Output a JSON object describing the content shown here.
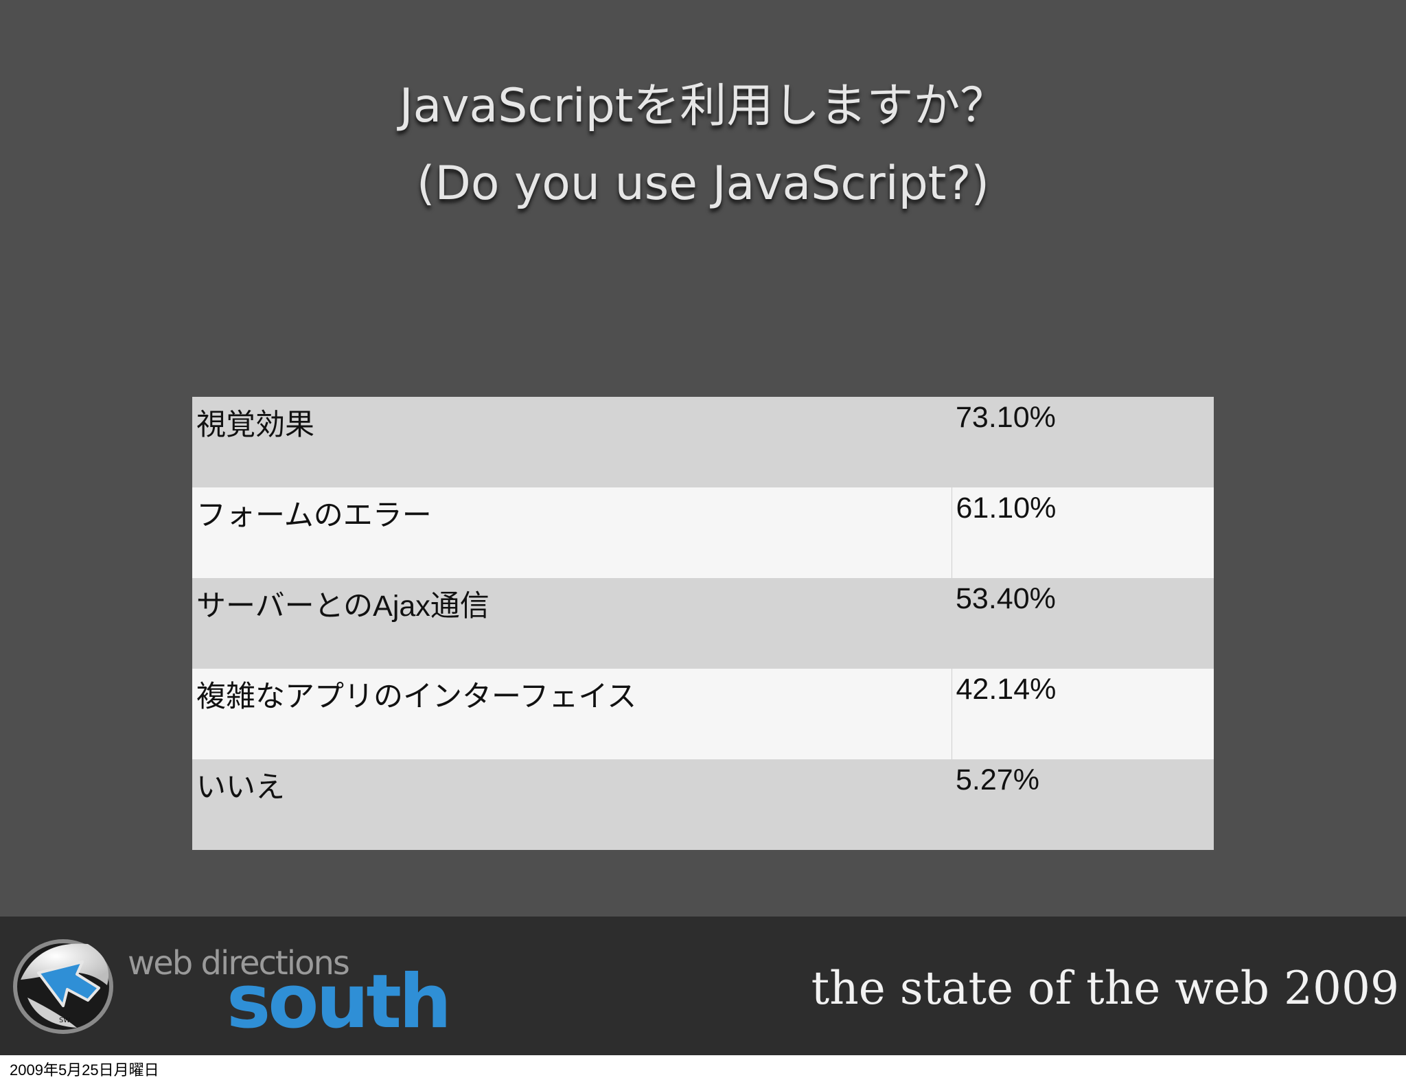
{
  "slide": {
    "title_line1": "JavaScriptを利用しますか？",
    "title_line2": "(Do you use JavaScript?)"
  },
  "table": {
    "rows": [
      {
        "label": "視覚効果",
        "value": "73.10%"
      },
      {
        "label": "フォームのエラー",
        "value": "61.10%"
      },
      {
        "label": "サーバーとのAjax通信",
        "value": "53.40%"
      },
      {
        "label": "複雑なアプリのインターフェイス",
        "value": "42.14%"
      },
      {
        "label": "いいえ",
        "value": "5.27%"
      }
    ]
  },
  "footer": {
    "logo": {
      "line1": "web directions",
      "line2": "south",
      "badge": "SW",
      "icon": "globe-arrow-logo-icon"
    },
    "title": "the state of the web 2009"
  },
  "timestamp": "2009年5月25日月曜日",
  "colors": {
    "slide_background": "#4f4f4f",
    "footer_background": "#2d2d2d",
    "row_odd": "#d4d4d4",
    "row_even": "#f6f6f6",
    "brand_blue": "#2f8fd6"
  }
}
